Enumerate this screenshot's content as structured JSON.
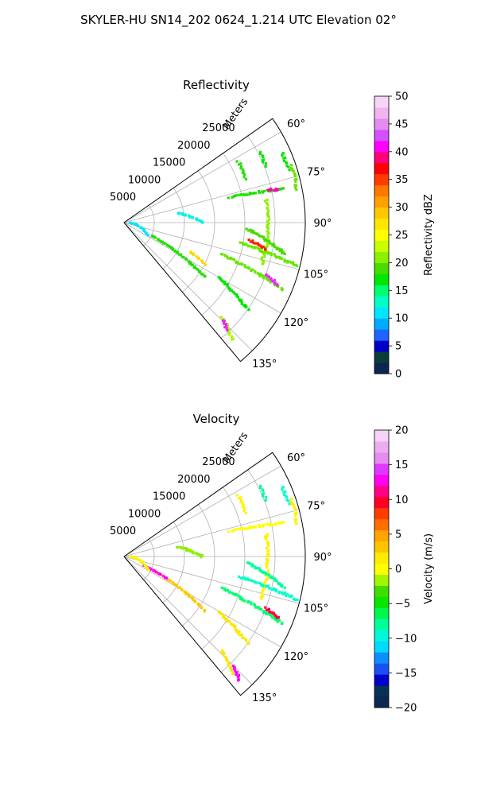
{
  "figure": {
    "title": "SKYLER-HU  SN14_202  0624_1.214 UTC Elevation 02°"
  },
  "chart_data": [
    {
      "type": "polar-sector",
      "title": "Reflectivity",
      "radial_label": "Meters",
      "theta_range_deg": [
        55,
        140
      ],
      "r_max": 30000,
      "radial_ticks": [
        5000,
        10000,
        15000,
        20000,
        25000
      ],
      "radial_tick_labels": [
        "5000",
        "10000",
        "15000",
        "20000",
        "25000"
      ],
      "angle_ticks": [
        60,
        75,
        90,
        105,
        120,
        135
      ],
      "angle_tick_labels": [
        "60°",
        "75°",
        "90°",
        "105°",
        "120°",
        "135°"
      ],
      "grid": true,
      "colorbar": {
        "label": "Reflectivity dBZ",
        "min": 0,
        "max": 50,
        "ticks": [
          0,
          5,
          10,
          15,
          20,
          25,
          30,
          35,
          40,
          45,
          50
        ],
        "tick_labels": [
          "0",
          "5",
          "10",
          "15",
          "20",
          "25",
          "30",
          "35",
          "40",
          "45",
          "50"
        ],
        "stops": [
          [
            0,
            "#0b1a5e"
          ],
          [
            3,
            "#0a3d3a"
          ],
          [
            5,
            "#0000c8"
          ],
          [
            7,
            "#1e64ff"
          ],
          [
            9,
            "#00aaff"
          ],
          [
            11,
            "#00e6ff"
          ],
          [
            13,
            "#00ffc8"
          ],
          [
            15,
            "#00ff6e"
          ],
          [
            17,
            "#00e600"
          ],
          [
            19,
            "#46dc00"
          ],
          [
            21,
            "#8cf000"
          ],
          [
            23,
            "#c8ff00"
          ],
          [
            25,
            "#ffff00"
          ],
          [
            27,
            "#ffe600"
          ],
          [
            29,
            "#ffc800"
          ],
          [
            31,
            "#ffa000"
          ],
          [
            33,
            "#ff7800"
          ],
          [
            35,
            "#ff3c00"
          ],
          [
            37,
            "#ff0000"
          ],
          [
            39,
            "#ff0078"
          ],
          [
            41,
            "#ff00ff"
          ],
          [
            43,
            "#d250ff"
          ],
          [
            45,
            "#e68cf0"
          ],
          [
            47,
            "#f0b4f0"
          ],
          [
            50,
            "#fae6fa"
          ]
        ]
      },
      "echoes": [
        {
          "theta": [
            62,
            70
          ],
          "r": [
            21500,
            21500
          ],
          "value": 18
        },
        {
          "theta": [
            63,
            68
          ],
          "r": [
            25300,
            25300
          ],
          "value": 17
        },
        {
          "theta": [
            66,
            72
          ],
          "r": [
            28600,
            28600
          ],
          "value": 17
        },
        {
          "theta": [
            71,
            79
          ],
          "r": [
            29200,
            29200
          ],
          "value": 20
        },
        {
          "theta": [
            76.5,
            78
          ],
          "r": [
            18000,
            27000
          ],
          "value": 18
        },
        {
          "theta": [
            77,
            78
          ],
          "r": [
            24500,
            26000
          ],
          "value": 40
        },
        {
          "theta": [
            81,
            107
          ],
          "r": [
            23800,
            23800
          ],
          "value": 21
        },
        {
          "theta": [
            93,
            101
          ],
          "r": [
            20500,
            27000
          ],
          "value": 19
        },
        {
          "theta": [
            100,
            104
          ],
          "r": [
            19500,
            29500
          ],
          "value": 20
        },
        {
          "theta": [
            98,
            101
          ],
          "r": [
            21000,
            24000
          ],
          "value": 36
        },
        {
          "theta": [
            108,
            113
          ],
          "r": [
            17000,
            28500
          ],
          "value": 20
        },
        {
          "theta": [
            110,
            112
          ],
          "r": [
            25000,
            27500
          ],
          "value": 42
        },
        {
          "theta": [
            115,
            124
          ],
          "r": [
            5000,
            16000
          ],
          "value": 18
        },
        {
          "theta": [
            114,
            117
          ],
          "r": [
            12000,
            15000
          ],
          "value": 28
        },
        {
          "theta": [
            120,
            125
          ],
          "r": [
            18000,
            25000
          ],
          "value": 17
        },
        {
          "theta": [
            134,
            137
          ],
          "r": [
            22500,
            26500
          ],
          "value": 22
        },
        {
          "theta": [
            134.5,
            136
          ],
          "r": [
            23000,
            24500
          ],
          "value": 42
        },
        {
          "theta": [
            80,
            90
          ],
          "r": [
            9000,
            13000
          ],
          "value": 12
        },
        {
          "theta": [
            92,
            118
          ],
          "r": [
            1000,
            4500
          ],
          "value": 11
        }
      ]
    },
    {
      "type": "polar-sector",
      "title": "Velocity",
      "radial_label": "Meters",
      "theta_range_deg": [
        55,
        140
      ],
      "r_max": 30000,
      "radial_ticks": [
        5000,
        10000,
        15000,
        20000,
        25000
      ],
      "radial_tick_labels": [
        "5000",
        "10000",
        "15000",
        "20000",
        "25000"
      ],
      "angle_ticks": [
        60,
        75,
        90,
        105,
        120,
        135
      ],
      "angle_tick_labels": [
        "60°",
        "75°",
        "90°",
        "105°",
        "120°",
        "135°"
      ],
      "grid": true,
      "colorbar": {
        "label": "Velocity (m/s)",
        "min": -20,
        "max": 20,
        "ticks": [
          -20,
          -15,
          -10,
          -5,
          0,
          5,
          10,
          15,
          20
        ],
        "tick_labels": [
          "−20",
          "−15",
          "−10",
          "−5",
          "0",
          "5",
          "10",
          "15",
          "20"
        ],
        "stops": [
          [
            -20,
            "#0b1a5e"
          ],
          [
            -18,
            "#0a3d3a"
          ],
          [
            -16,
            "#0000c8"
          ],
          [
            -14,
            "#1e64ff"
          ],
          [
            -12,
            "#00aaff"
          ],
          [
            -11,
            "#00e6ff"
          ],
          [
            -9,
            "#00ffc8"
          ],
          [
            -7,
            "#00ff6e"
          ],
          [
            -5,
            "#00e600"
          ],
          [
            -3,
            "#46dc00"
          ],
          [
            -2,
            "#8cf000"
          ],
          [
            -1,
            "#c8ff00"
          ],
          [
            0,
            "#ffff00"
          ],
          [
            2,
            "#ffe600"
          ],
          [
            3,
            "#ffc800"
          ],
          [
            5,
            "#ffa000"
          ],
          [
            6,
            "#ff7800"
          ],
          [
            8,
            "#ff3c00"
          ],
          [
            9,
            "#ff0000"
          ],
          [
            11,
            "#ff0078"
          ],
          [
            13,
            "#ff00ff"
          ],
          [
            15,
            "#d250ff"
          ],
          [
            16,
            "#e68cf0"
          ],
          [
            18,
            "#f0b4f0"
          ],
          [
            20,
            "#fae6fa"
          ]
        ]
      },
      "echoes": [
        {
          "theta": [
            62,
            70
          ],
          "r": [
            21500,
            21500
          ],
          "value": 1
        },
        {
          "theta": [
            63,
            68
          ],
          "r": [
            25300,
            25300
          ],
          "value": -8
        },
        {
          "theta": [
            66,
            72
          ],
          "r": [
            28600,
            28600
          ],
          "value": -9
        },
        {
          "theta": [
            71,
            79
          ],
          "r": [
            29200,
            29200
          ],
          "value": 1
        },
        {
          "theta": [
            76.5,
            78
          ],
          "r": [
            18000,
            27000
          ],
          "value": 0
        },
        {
          "theta": [
            81,
            107
          ],
          "r": [
            23800,
            23800
          ],
          "value": 1
        },
        {
          "theta": [
            93,
            101
          ],
          "r": [
            20500,
            27000
          ],
          "value": -8
        },
        {
          "theta": [
            100,
            104
          ],
          "r": [
            19500,
            29500
          ],
          "value": -9
        },
        {
          "theta": [
            108,
            113
          ],
          "r": [
            17000,
            28500
          ],
          "value": -7
        },
        {
          "theta": [
            110,
            112
          ],
          "r": [
            25000,
            27500
          ],
          "value": 10
        },
        {
          "theta": [
            115,
            124
          ],
          "r": [
            5000,
            16000
          ],
          "value": 3
        },
        {
          "theta": [
            114,
            117
          ],
          "r": [
            3500,
            8000
          ],
          "value": 13
        },
        {
          "theta": [
            120,
            125
          ],
          "r": [
            18000,
            25000
          ],
          "value": 2
        },
        {
          "theta": [
            134,
            137
          ],
          "r": [
            22500,
            26500
          ],
          "value": 2
        },
        {
          "theta": [
            135,
            137
          ],
          "r": [
            25500,
            28000
          ],
          "value": 13
        },
        {
          "theta": [
            80,
            90
          ],
          "r": [
            9000,
            13000
          ],
          "value": -2
        },
        {
          "theta": [
            92,
            118
          ],
          "r": [
            1000,
            4500
          ],
          "value": 1
        }
      ]
    }
  ]
}
